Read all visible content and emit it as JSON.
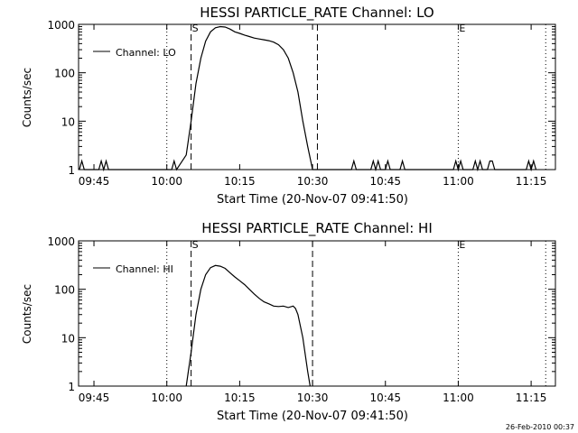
{
  "chart_data": [
    {
      "type": "line",
      "title": "HESSI PARTICLE_RATE Channel: LO",
      "xlabel": "Start Time (20-Nov-07 09:41:50)",
      "ylabel": "Counts/sec",
      "y_scale": "log",
      "ylim": [
        1,
        1000
      ],
      "y_ticks": [
        1,
        10,
        100,
        1000
      ],
      "y_tick_labels": [
        "1",
        "10",
        "100",
        "1000"
      ],
      "xlim": [
        "09:41:50",
        "11:20:00"
      ],
      "x_ticks": [
        "09:45",
        "10:00",
        "10:15",
        "10:30",
        "10:45",
        "11:00",
        "11:15"
      ],
      "legend": {
        "label": "Channel: LO",
        "position": "top-left"
      },
      "markers": [
        {
          "label": "S",
          "time": "10:05",
          "style": "dashed"
        },
        {
          "label": "",
          "time": "10:31",
          "style": "dashed"
        },
        {
          "label": "E",
          "time": "11:00",
          "style": "dotted"
        },
        {
          "label": "",
          "time": "10:00",
          "style": "dotted"
        },
        {
          "label": "",
          "time": "11:18",
          "style": "dotted"
        }
      ],
      "series": [
        {
          "values": [
            [
              "09:42",
              1
            ],
            [
              "09:42:30",
              1.5
            ],
            [
              "09:43",
              1
            ],
            [
              "09:46",
              1
            ],
            [
              "09:46:30",
              1.5
            ],
            [
              "09:47",
              1
            ],
            [
              "09:47:30",
              1.5
            ],
            [
              "09:48",
              1
            ],
            [
              "10:01",
              1
            ],
            [
              "10:01:30",
              1.5
            ],
            [
              "10:02",
              1
            ],
            [
              "10:04",
              2
            ],
            [
              "10:05",
              10
            ],
            [
              "10:06",
              60
            ],
            [
              "10:07",
              200
            ],
            [
              "10:08",
              450
            ],
            [
              "10:09",
              700
            ],
            [
              "10:10",
              850
            ],
            [
              "10:11",
              900
            ],
            [
              "10:12",
              880
            ],
            [
              "10:13",
              800
            ],
            [
              "10:14",
              700
            ],
            [
              "10:15",
              650
            ],
            [
              "10:16",
              600
            ],
            [
              "10:17",
              560
            ],
            [
              "10:18",
              520
            ],
            [
              "10:19",
              500
            ],
            [
              "10:20",
              480
            ],
            [
              "10:21",
              460
            ],
            [
              "10:22",
              430
            ],
            [
              "10:23",
              380
            ],
            [
              "10:24",
              300
            ],
            [
              "10:25",
              200
            ],
            [
              "10:26",
              100
            ],
            [
              "10:27",
              40
            ],
            [
              "10:28",
              10
            ],
            [
              "10:29",
              3
            ],
            [
              "10:30",
              1
            ],
            [
              "10:31",
              1
            ],
            [
              "10:38",
              1
            ],
            [
              "10:38:30",
              1.5
            ],
            [
              "10:39",
              1
            ],
            [
              "10:42",
              1
            ],
            [
              "10:42:30",
              1.5
            ],
            [
              "10:43",
              1
            ],
            [
              "10:43:30",
              1.5
            ],
            [
              "10:44",
              1
            ],
            [
              "10:45",
              1
            ],
            [
              "10:45:30",
              1.5
            ],
            [
              "10:46",
              1
            ],
            [
              "10:48",
              1
            ],
            [
              "10:48:30",
              1.5
            ],
            [
              "10:49",
              1
            ],
            [
              "10:59",
              1
            ],
            [
              "10:59:30",
              1.5
            ],
            [
              "11:00",
              1
            ],
            [
              "11:00:30",
              1.5
            ],
            [
              "11:01",
              1
            ],
            [
              "11:03",
              1
            ],
            [
              "11:03:30",
              1.5
            ],
            [
              "11:04",
              1
            ],
            [
              "11:04:30",
              1.5
            ],
            [
              "11:05",
              1
            ],
            [
              "11:06",
              1
            ],
            [
              "11:06:30",
              1.5
            ],
            [
              "11:07",
              1.5
            ],
            [
              "11:07:30",
              1
            ],
            [
              "11:14",
              1
            ],
            [
              "11:14:30",
              1.5
            ],
            [
              "11:15",
              1
            ],
            [
              "11:15:30",
              1.5
            ],
            [
              "11:16",
              1
            ]
          ]
        }
      ]
    },
    {
      "type": "line",
      "title": "HESSI PARTICLE_RATE Channel: HI",
      "xlabel": "Start Time (20-Nov-07 09:41:50)",
      "ylabel": "Counts/sec",
      "y_scale": "log",
      "ylim": [
        1,
        1000
      ],
      "y_ticks": [
        1,
        10,
        100,
        1000
      ],
      "y_tick_labels": [
        "1",
        "10",
        "100",
        "1000"
      ],
      "xlim": [
        "09:41:50",
        "11:20:00"
      ],
      "x_ticks": [
        "09:45",
        "10:00",
        "10:15",
        "10:30",
        "10:45",
        "11:00",
        "11:15"
      ],
      "legend": {
        "label": "Channel: HI",
        "position": "top-left"
      },
      "markers": [
        {
          "label": "S",
          "time": "10:05",
          "style": "dashed"
        },
        {
          "label": "",
          "time": "10:30",
          "style": "dashed"
        },
        {
          "label": "E",
          "time": "11:00",
          "style": "dotted"
        },
        {
          "label": "",
          "time": "10:00",
          "style": "dotted"
        },
        {
          "label": "",
          "time": "11:18",
          "style": "dotted"
        }
      ],
      "series": [
        {
          "values": [
            [
              "10:04",
              1
            ],
            [
              "10:05",
              5
            ],
            [
              "10:06",
              30
            ],
            [
              "10:07",
              100
            ],
            [
              "10:08",
              200
            ],
            [
              "10:09",
              280
            ],
            [
              "10:10",
              310
            ],
            [
              "10:11",
              300
            ],
            [
              "10:12",
              270
            ],
            [
              "10:13",
              220
            ],
            [
              "10:14",
              180
            ],
            [
              "10:15",
              150
            ],
            [
              "10:16",
              125
            ],
            [
              "10:17",
              100
            ],
            [
              "10:18",
              80
            ],
            [
              "10:19",
              65
            ],
            [
              "10:20",
              55
            ],
            [
              "10:21",
              50
            ],
            [
              "10:22",
              45
            ],
            [
              "10:23",
              44
            ],
            [
              "10:24",
              45
            ],
            [
              "10:25",
              42
            ],
            [
              "10:26",
              45
            ],
            [
              "10:26:30",
              40
            ],
            [
              "10:27",
              30
            ],
            [
              "10:28",
              10
            ],
            [
              "10:29",
              2
            ],
            [
              "10:29:30",
              1
            ]
          ]
        }
      ]
    }
  ],
  "footer": {
    "timestamp": "26-Feb-2010 00:37"
  }
}
